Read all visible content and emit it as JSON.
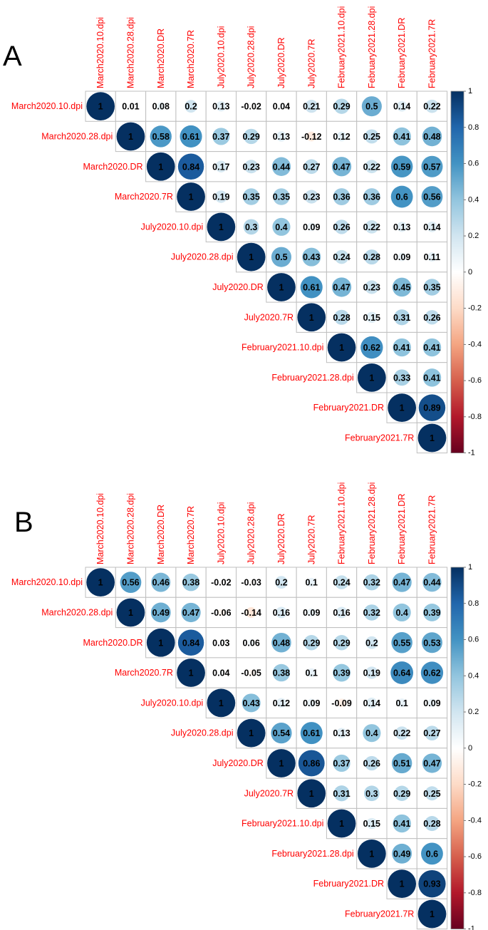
{
  "theme": {
    "label_color": "#ff0000",
    "grid_color": "#bfbfbf",
    "palette": [
      "#67001f",
      "#b2182b",
      "#d6604d",
      "#f4a582",
      "#fddbc7",
      "#ffffff",
      "#d1e5f0",
      "#92c5de",
      "#4393c3",
      "#2166ac",
      "#053061"
    ]
  },
  "chart_data": [
    {
      "type": "heatmap",
      "panel_label": "A",
      "variables": [
        "March2020.10.dpi",
        "March2020.28.dpi",
        "March2020.DR",
        "March2020.7R",
        "July2020.10.dpi",
        "July2020.28.dpi",
        "July2020.DR",
        "July2020.7R",
        "February2021.10.dpi",
        "February2021.28.dpi",
        "February2021.DR",
        "February2021.7R"
      ],
      "matrix_upper": [
        [
          "1",
          "0.01",
          "0.08",
          "0.2",
          "0.13",
          "-0.02",
          "0.04",
          "0.21",
          "0.29",
          "0.5",
          "0.14",
          "0.22"
        ],
        [
          "1",
          "0.58",
          "0.61",
          "0.37",
          "0.29",
          "0.13",
          "-0.12",
          "0.12",
          "0.25",
          "0.41",
          "0.48"
        ],
        [
          "1",
          "0.84",
          "0.17",
          "0.23",
          "0.44",
          "0.27",
          "0.47",
          "0.22",
          "0.59",
          "0.57"
        ],
        [
          "1",
          "0.19",
          "0.35",
          "0.35",
          "0.23",
          "0.36",
          "0.36",
          "0.6",
          "0.56"
        ],
        [
          "1",
          "0.3",
          "0.4",
          "0.09",
          "0.26",
          "0.22",
          "0.13",
          "0.14"
        ],
        [
          "1",
          "0.5",
          "0.43",
          "0.24",
          "0.28",
          "0.09",
          "0.11"
        ],
        [
          "1",
          "0.61",
          "0.47",
          "0.23",
          "0.45",
          "0.35"
        ],
        [
          "1",
          "0.28",
          "0.15",
          "0.31",
          "0.26"
        ],
        [
          "1",
          "0.62",
          "0.41",
          "0.41"
        ],
        [
          "1",
          "0.33",
          "0.41"
        ],
        [
          "1",
          "0.89"
        ],
        [
          "1"
        ]
      ],
      "colorbar_ticks": [
        "1",
        "0.8",
        "0.6",
        "0.4",
        "0.2",
        "0",
        "-0.2",
        "-0.4",
        "-0.6",
        "-0.8",
        "-1"
      ],
      "colorbar_range": [
        -1,
        1
      ]
    },
    {
      "type": "heatmap",
      "panel_label": "B",
      "variables": [
        "March2020.10.dpi",
        "March2020.28.dpi",
        "March2020.DR",
        "March2020.7R",
        "July2020.10.dpi",
        "July2020.28.dpi",
        "July2020.DR",
        "July2020.7R",
        "February2021.10.dpi",
        "February2021.28.dpi",
        "February2021.DR",
        "February2021.7R"
      ],
      "matrix_upper": [
        [
          "1",
          "0.56",
          "0.46",
          "0.38",
          "-0.02",
          "-0.03",
          "0.2",
          "0.1",
          "0.24",
          "0.32",
          "0.47",
          "0.44"
        ],
        [
          "1",
          "0.49",
          "0.47",
          "-0.06",
          "-0.14",
          "0.16",
          "0.09",
          "0.16",
          "0.32",
          "0.4",
          "0.39"
        ],
        [
          "1",
          "0.84",
          "0.03",
          "0.06",
          "0.48",
          "0.29",
          "0.29",
          "0.2",
          "0.55",
          "0.53"
        ],
        [
          "1",
          "0.04",
          "-0.05",
          "0.38",
          "0.1",
          "0.39",
          "0.19",
          "0.64",
          "0.62"
        ],
        [
          "1",
          "0.43",
          "0.12",
          "0.09",
          "-0.09",
          "0.14",
          "0.1",
          "0.09"
        ],
        [
          "1",
          "0.54",
          "0.61",
          "0.13",
          "0.4",
          "0.22",
          "0.27"
        ],
        [
          "1",
          "0.86",
          "0.37",
          "0.26",
          "0.51",
          "0.47"
        ],
        [
          "1",
          "0.31",
          "0.3",
          "0.29",
          "0.25"
        ],
        [
          "1",
          "0.15",
          "0.41",
          "0.28"
        ],
        [
          "1",
          "0.49",
          "0.6"
        ],
        [
          "1",
          "0.93"
        ],
        [
          "1"
        ]
      ],
      "colorbar_ticks": [
        "1",
        "0.8",
        "0.6",
        "0.4",
        "0.2",
        "0",
        "-0.2",
        "-0.4",
        "-0.6",
        "-0.8",
        "-1"
      ],
      "colorbar_range": [
        -1,
        1
      ]
    }
  ]
}
